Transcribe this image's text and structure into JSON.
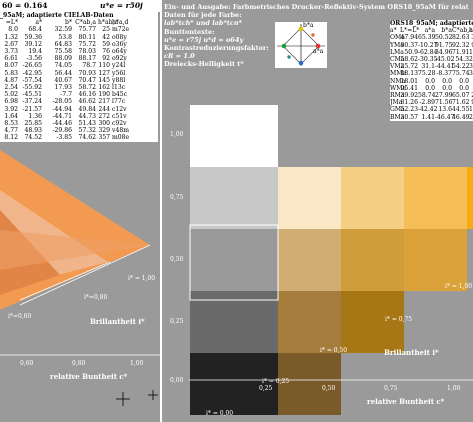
{
  "left": {
    "top_line": "60 = 0.164",
    "top_right": "u*e = r50j",
    "table_title": "_95aM; adaptierte CIELAB-Daten",
    "header": [
      "=L*",
      "a*",
      "b*",
      "C*ab,a",
      "h*ab,a",
      "h*a,d"
    ],
    "rows": [
      [
        "8.0",
        "68.4",
        "32.59",
        "75.77",
        "25",
        "m72e"
      ],
      [
        "1.32",
        "59.36",
        "53.8",
        "80.11",
        "42",
        "o08y"
      ],
      [
        "2.67",
        "39.12",
        "64.83",
        "75.72",
        "59",
        "o36y"
      ],
      [
        "3.73",
        "19.4",
        "75.58",
        "78.03",
        "76",
        "o64y"
      ],
      [
        "6.61",
        "-3.56",
        "88.09",
        "88.17",
        "92",
        "o92y"
      ],
      [
        "8.07",
        "-26.65",
        "74.05",
        "78.7",
        "110",
        "y24l"
      ],
      [
        "5.83",
        "-42.95",
        "56.44",
        "70.93",
        "127",
        "y56l"
      ],
      [
        "4.87",
        "-57.54",
        "40.67",
        "70.47",
        "145",
        "y88l"
      ],
      [
        "2.54",
        "-55.92",
        "17.93",
        "58.72",
        "162",
        "l13c"
      ],
      [
        "5.02",
        "-45.51",
        "-7.7",
        "46.16",
        "190",
        "b45c"
      ],
      [
        "6.98",
        "-37.24",
        "-28.05",
        "46.62",
        "217",
        "l77c"
      ],
      [
        "3.92",
        "-21.57",
        "-44.94",
        "49.84",
        "244",
        "c12v"
      ],
      [
        "1.64",
        "1.36",
        "-44.71",
        "44.73",
        "272",
        "c51v"
      ],
      [
        "8.53",
        "25.85",
        "-44.46",
        "51.43",
        "300",
        "c92v"
      ],
      [
        "4.77",
        "48.93",
        "-29.86",
        "57.32",
        "329",
        "v48m"
      ],
      [
        "8.12",
        "74.52",
        "-3.85",
        "74.62",
        "357",
        "m08e"
      ]
    ],
    "fan_labels": {
      "i1": "i* = 1,00",
      "i08": "i*=0,80",
      "i06": "i*=0,60"
    },
    "brillantheit": "Brillantheit i*",
    "axis_ticks": [
      "0,60",
      "0,80",
      "1,00"
    ],
    "buntheit": "relative Buntheit c*"
  },
  "right": {
    "title_line1": "Ein- und Ausgabe: Farbmetrisches Drucker-Reflektiv-System ORS18_95aM für relat",
    "title_line2": "Daten für jede Farbe:",
    "title_line3": "lab*tch* und lab*tcn*",
    "title_line4": "Bunttontexte:",
    "title_line5": "u*e = r75j    u*d = o64y",
    "title_line6": "Kontrastreduzierungsfaktor:",
    "title_line7": "cR = 1.0",
    "title_line8": "Dreiecks-Helligkeit t*",
    "icon_labels": {
      "top": "b*a",
      "right": "a*a"
    },
    "table_title": "ORS18_95aM; adaptierte CIELAB-Dat",
    "header": [
      "a*",
      "L*=L*",
      "a*a",
      "b*a",
      "C*ab,a",
      "h*ab,a"
    ],
    "rows": [
      [
        "OMa",
        "47.94",
        "65.39",
        "50.52",
        "82.63",
        "38"
      ],
      [
        "YMa",
        "90.37",
        "-10.27",
        "91.75",
        "92.32",
        "96"
      ],
      [
        "LMa",
        "50.9",
        "-62.84",
        "34.96",
        "71.91",
        "150"
      ],
      [
        "CMa",
        "58.62",
        "-30.35",
        "-45.02",
        "54.3",
        "236"
      ],
      [
        "VMa",
        "25.72",
        "31.1",
        "-44.41",
        "54.22",
        "305"
      ],
      [
        "MMa",
        "48.13",
        "75.28",
        "-8.37",
        "75.74",
        "353"
      ],
      [
        "NMa",
        "18.01",
        "0.0",
        "0.0",
        "0.0",
        "0"
      ],
      [
        "WMa",
        "95.41",
        "0.0",
        "0.0",
        "0.0",
        "0"
      ],
      [
        "RMa",
        "39.92",
        "58.74",
        "27.99",
        "65.07",
        "25"
      ],
      [
        "JMa",
        "81.26",
        "-2.89",
        "71.56",
        "71.62",
        "92"
      ],
      [
        "GMa",
        "52.23",
        "-42.42",
        "13.6",
        "44.55",
        "162"
      ],
      [
        "BMa",
        "30.57",
        "1.41",
        "-46.47",
        "46.49",
        "271"
      ]
    ],
    "y_ticks": [
      "1,00",
      "0,75",
      "0,50",
      "0,25",
      "0,00"
    ],
    "x_ticks": [
      "0,25",
      "0,50",
      "0,75",
      "1,00"
    ],
    "x_label": "relative Buntheit c*",
    "brillantheit": "Brillantheit i*",
    "i_labels": {
      "i000": "i* = 0,00",
      "i025": "i* = 0,25",
      "i050": "i* = 0,50",
      "i075": "i* = 0,75",
      "i100": "i* = 1,00"
    }
  },
  "colors": {
    "panel_bg": "#9a9a9a",
    "grays": [
      "#222222",
      "#6a6a6a",
      "#9a9a9a",
      "#c8c8c8",
      "#ffffff"
    ],
    "col1": [
      "#7b5a2a",
      "#a67c3c",
      "#d1ac73",
      "#f9e7c6"
    ],
    "col2": [
      "#a77715",
      "#cf9d3c",
      "#f5cf85"
    ],
    "col3": [
      "#dca23a",
      "#f4bd55"
    ],
    "col4": [
      "#f5ac10"
    ]
  }
}
